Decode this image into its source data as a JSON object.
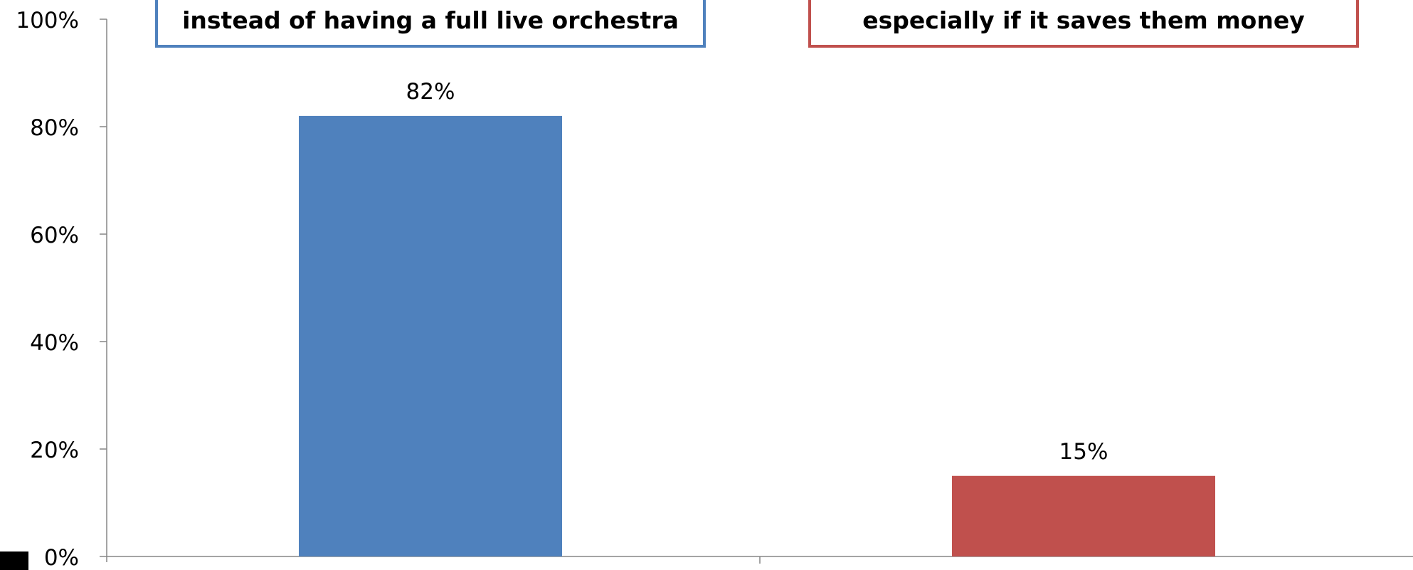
{
  "chart_data": {
    "type": "bar",
    "categories": [
      "instead of having a full live orchestra",
      "especially if it saves them money"
    ],
    "values": [
      82,
      15
    ],
    "value_labels": [
      "82%",
      "15%"
    ],
    "colors": [
      "#4f81bd",
      "#c0504d"
    ],
    "ylim": [
      0,
      100
    ],
    "yticks": [
      0,
      20,
      40,
      60,
      80,
      100
    ],
    "ytick_labels": [
      "0%",
      "20%",
      "40%",
      "60%",
      "80%",
      "100%"
    ],
    "title": "",
    "xlabel": "",
    "ylabel": "",
    "grid": false,
    "legend": "none"
  }
}
